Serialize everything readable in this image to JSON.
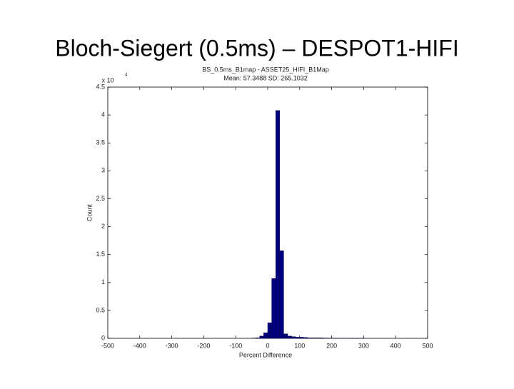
{
  "slide_title": "Bloch-Siegert (0.5ms) – DESPOT1-HIFI",
  "chart_data": {
    "type": "histogram",
    "title": "BS_0.5ms_B1map - ASSET25_HIFI_B1Map",
    "subtitle": "Mean: 57.3488 SD: 265.1032",
    "x_label": "Percent Difference",
    "y_label": "Count",
    "y_multiplier": {
      "base": "x 10",
      "exponent": "4"
    },
    "color": "#00007f",
    "bins": [
      -50,
      -37.5,
      -25,
      -12.5,
      0,
      12.5,
      25,
      37.5,
      50,
      62.5,
      75,
      87.5,
      100,
      112.5,
      125,
      137.5,
      150,
      162.5,
      175,
      187.5,
      200,
      212.5,
      225,
      237.5,
      250,
      262.5,
      275,
      287.5,
      300
    ],
    "values": [
      0.005,
      0.01,
      0.04,
      0.1,
      0.28,
      1.07,
      4.08,
      1.57,
      0.08,
      0.04,
      0.03,
      0.02,
      0.02,
      0.015,
      0.01,
      0.01,
      0.01,
      0.008,
      0.006,
      0.005,
      0.004,
      0.004,
      0.003,
      0.003,
      0.002,
      0.002,
      0.002,
      0.001
    ],
    "xlim": [
      -500,
      500
    ],
    "xticks": [
      -500,
      -400,
      -300,
      -200,
      -100,
      0,
      100,
      200,
      300,
      400,
      500
    ],
    "ylim": [
      0,
      4.5
    ],
    "yticks": [
      0,
      0.5,
      1,
      1.5,
      2,
      2.5,
      3,
      3.5,
      4,
      4.5
    ]
  }
}
